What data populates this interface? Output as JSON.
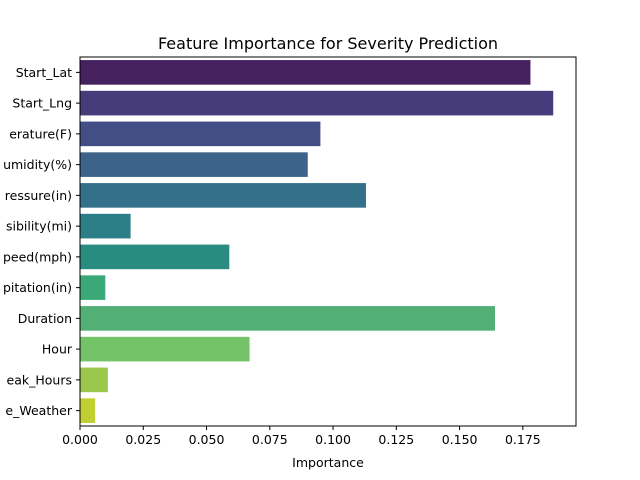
{
  "chart_data": {
    "type": "bar",
    "orientation": "horizontal",
    "title": "Feature Importance for Severity Prediction",
    "xlabel": "Importance",
    "ylabel": "",
    "xlim": [
      0,
      0.196
    ],
    "xticks": [
      0.0,
      0.025,
      0.05,
      0.075,
      0.1,
      0.125,
      0.15,
      0.175
    ],
    "xtick_labels": [
      "0.000",
      "0.025",
      "0.050",
      "0.075",
      "0.100",
      "0.125",
      "0.150",
      "0.175"
    ],
    "grid": false,
    "categories": [
      "Start_Lat",
      "Start_Lng",
      "erature(F)",
      "umidity(%)",
      "ressure(in)",
      "sibility(mi)",
      "peed(mph)",
      "pitation(in)",
      "Duration",
      "Hour",
      "eak_Hours",
      "e_Weather"
    ],
    "values": [
      0.178,
      0.187,
      0.095,
      0.09,
      0.113,
      0.02,
      0.059,
      0.01,
      0.164,
      0.067,
      0.011,
      0.006
    ],
    "colors": [
      "#46215f",
      "#473c7b",
      "#434e87",
      "#3e638a",
      "#33718a",
      "#2c7f86",
      "#2a8c80",
      "#3aa977",
      "#52b076",
      "#74c369",
      "#9ac74c",
      "#c0cf31"
    ]
  }
}
